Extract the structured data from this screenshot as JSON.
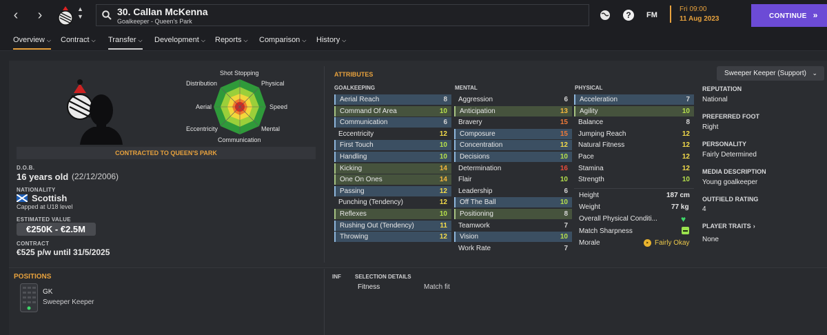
{
  "header": {
    "player_name": "30. Callan McKenna",
    "player_sub": "Goalkeeper - Queen's Park",
    "fm_label": "FM",
    "day_time": "Fri 09:00",
    "date": "11 Aug 2023",
    "continue_label": "CONTINUE"
  },
  "tabs": [
    {
      "label": "Overview"
    },
    {
      "label": "Contract"
    },
    {
      "label": "Transfer"
    },
    {
      "label": "Development"
    },
    {
      "label": "Reports"
    },
    {
      "label": "Comparison"
    },
    {
      "label": "History"
    }
  ],
  "profile": {
    "contract_banner": "CONTRACTED TO QUEEN'S PARK",
    "dob_label": "D.O.B.",
    "age": "16 years old",
    "dob": "(22/12/2006)",
    "nationality_label": "NATIONALITY",
    "nationality": "Scottish",
    "caps": "Capped at U18 level",
    "value_label": "ESTIMATED VALUE",
    "value": "€250K - €2.5M",
    "contract_label": "CONTRACT",
    "contract": "€525 p/w until 31/5/2025"
  },
  "radar": {
    "labels": [
      "Shot Stopping",
      "Physical",
      "Speed",
      "Mental",
      "Communication",
      "Eccentricity",
      "Aerial",
      "Distribution"
    ]
  },
  "attributes": {
    "title": "ATTRIBUTES",
    "role": "Sweeper Keeper (Support)",
    "goalkeeping_label": "GOALKEEPING",
    "mental_label": "MENTAL",
    "physical_label": "PHYSICAL",
    "goalkeeping": [
      {
        "name": "Aerial Reach",
        "value": "8"
      },
      {
        "name": "Command Of Area",
        "value": "10"
      },
      {
        "name": "Communication",
        "value": "6"
      },
      {
        "name": "Eccentricity",
        "value": "12"
      },
      {
        "name": "First Touch",
        "value": "10"
      },
      {
        "name": "Handling",
        "value": "10"
      },
      {
        "name": "Kicking",
        "value": "14"
      },
      {
        "name": "One On Ones",
        "value": "14"
      },
      {
        "name": "Passing",
        "value": "12"
      },
      {
        "name": "Punching (Tendency)",
        "value": "12"
      },
      {
        "name": "Reflexes",
        "value": "10"
      },
      {
        "name": "Rushing Out (Tendency)",
        "value": "11"
      },
      {
        "name": "Throwing",
        "value": "12"
      }
    ],
    "mental": [
      {
        "name": "Aggression",
        "value": "6"
      },
      {
        "name": "Anticipation",
        "value": "13"
      },
      {
        "name": "Bravery",
        "value": "15"
      },
      {
        "name": "Composure",
        "value": "15"
      },
      {
        "name": "Concentration",
        "value": "12"
      },
      {
        "name": "Decisions",
        "value": "10"
      },
      {
        "name": "Determination",
        "value": "16"
      },
      {
        "name": "Flair",
        "value": "10"
      },
      {
        "name": "Leadership",
        "value": "6"
      },
      {
        "name": "Off The Ball",
        "value": "10"
      },
      {
        "name": "Positioning",
        "value": "8"
      },
      {
        "name": "Teamwork",
        "value": "7"
      },
      {
        "name": "Vision",
        "value": "10"
      },
      {
        "name": "Work Rate",
        "value": "7"
      }
    ],
    "physical": [
      {
        "name": "Acceleration",
        "value": "7"
      },
      {
        "name": "Agility",
        "value": "10"
      },
      {
        "name": "Balance",
        "value": "8"
      },
      {
        "name": "Jumping Reach",
        "value": "12"
      },
      {
        "name": "Natural Fitness",
        "value": "12"
      },
      {
        "name": "Pace",
        "value": "12"
      },
      {
        "name": "Stamina",
        "value": "12"
      },
      {
        "name": "Strength",
        "value": "10"
      }
    ],
    "height_label": "Height",
    "height": "187 cm",
    "weight_label": "Weight",
    "weight": "77 kg",
    "condition_label": "Overall Physical Conditi...",
    "sharpness_label": "Match Sharpness",
    "morale_label": "Morale",
    "morale": "Fairly Okay"
  },
  "right_info": {
    "reputation_label": "REPUTATION",
    "reputation": "National",
    "foot_label": "PREFERRED FOOT",
    "foot": "Right",
    "personality_label": "PERSONALITY",
    "personality": "Fairly Determined",
    "media_label": "MEDIA DESCRIPTION",
    "media": "Young goalkeeper",
    "outfield_label": "OUTFIELD RATING",
    "outfield": "4",
    "traits_label": "PLAYER TRAITS",
    "traits": "None"
  },
  "positions": {
    "title": "POSITIONS",
    "pos": "GK",
    "role": "Sweeper Keeper"
  },
  "selection": {
    "inf_label": "INF",
    "details_label": "SELECTION DETAILS",
    "fitness_label": "Fitness",
    "fitness": "Match fit"
  }
}
